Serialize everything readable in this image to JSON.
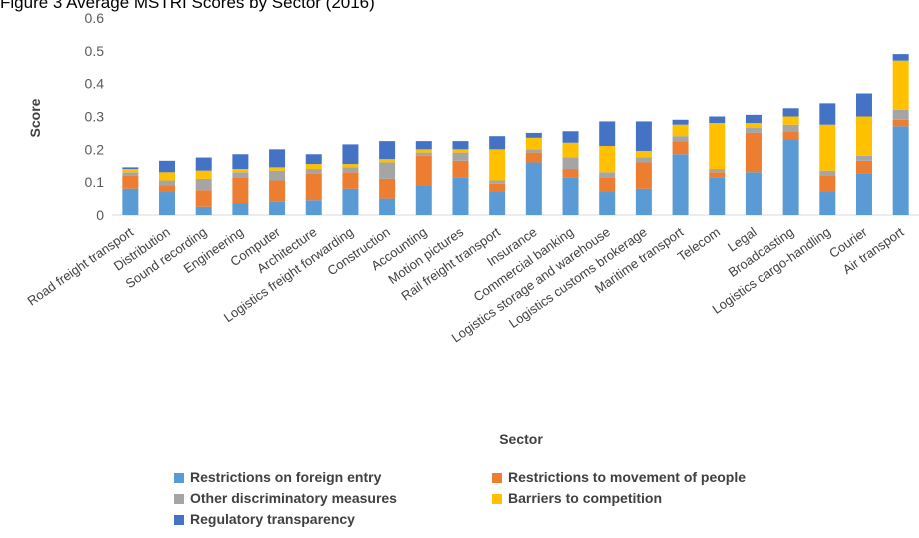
{
  "chart_data": {
    "type": "bar",
    "stacked": true,
    "title": "Figure 3 Average MSTRI Scores by Sector (2016)",
    "xlabel": "Sector",
    "ylabel": "Score",
    "ylim": [
      0,
      0.6
    ],
    "yticks": [
      "0",
      "0.1",
      "0.2",
      "0.3",
      "0.4",
      "0.5",
      "0.6"
    ],
    "grid": false,
    "legend_position": "bottom",
    "categories": [
      "Road freight transport",
      "Distribution",
      "Sound recording",
      "Engineering",
      "Computer",
      "Architecture",
      "Logistics freight forwarding",
      "Construction",
      "Accounting",
      "Motion pictures",
      "Rail freight transport",
      "Insurance",
      "Commercial banking",
      "Logistics storage and warehouse",
      "Logistics customs brokerage",
      "Maritime transport",
      "Telecom",
      "Legal",
      "Broadcasting",
      "Logistics cargo-handling",
      "Courier",
      "Air transport"
    ],
    "series": [
      {
        "name": "Restrictions on foreign entry",
        "color": "#5B9BD5",
        "values": [
          0.08,
          0.07,
          0.025,
          0.035,
          0.04,
          0.045,
          0.08,
          0.05,
          0.09,
          0.115,
          0.07,
          0.16,
          0.115,
          0.07,
          0.08,
          0.185,
          0.115,
          0.13,
          0.23,
          0.07,
          0.125,
          0.27
        ]
      },
      {
        "name": "Restrictions to movement of people",
        "color": "#ED7D31",
        "values": [
          0.04,
          0.02,
          0.05,
          0.08,
          0.065,
          0.08,
          0.05,
          0.06,
          0.09,
          0.05,
          0.025,
          0.03,
          0.025,
          0.045,
          0.08,
          0.04,
          0.015,
          0.12,
          0.025,
          0.05,
          0.04,
          0.02
        ]
      },
      {
        "name": "Other discriminatory measures",
        "color": "#A5A5A5",
        "values": [
          0.01,
          0.015,
          0.035,
          0.015,
          0.03,
          0.015,
          0.015,
          0.05,
          0.01,
          0.025,
          0.01,
          0.01,
          0.035,
          0.015,
          0.015,
          0.015,
          0.01,
          0.015,
          0.02,
          0.015,
          0.015,
          0.03
        ]
      },
      {
        "name": "Barriers to competition",
        "color": "#FFC000",
        "values": [
          0.01,
          0.025,
          0.025,
          0.01,
          0.01,
          0.015,
          0.01,
          0.01,
          0.01,
          0.01,
          0.095,
          0.035,
          0.045,
          0.08,
          0.02,
          0.035,
          0.14,
          0.015,
          0.025,
          0.14,
          0.12,
          0.15
        ]
      },
      {
        "name": "Regulatory transparency",
        "color": "#4472C4",
        "values": [
          0.005,
          0.035,
          0.04,
          0.045,
          0.055,
          0.03,
          0.06,
          0.055,
          0.025,
          0.025,
          0.04,
          0.015,
          0.035,
          0.075,
          0.09,
          0.015,
          0.02,
          0.025,
          0.025,
          0.065,
          0.07,
          0.02
        ]
      }
    ]
  }
}
